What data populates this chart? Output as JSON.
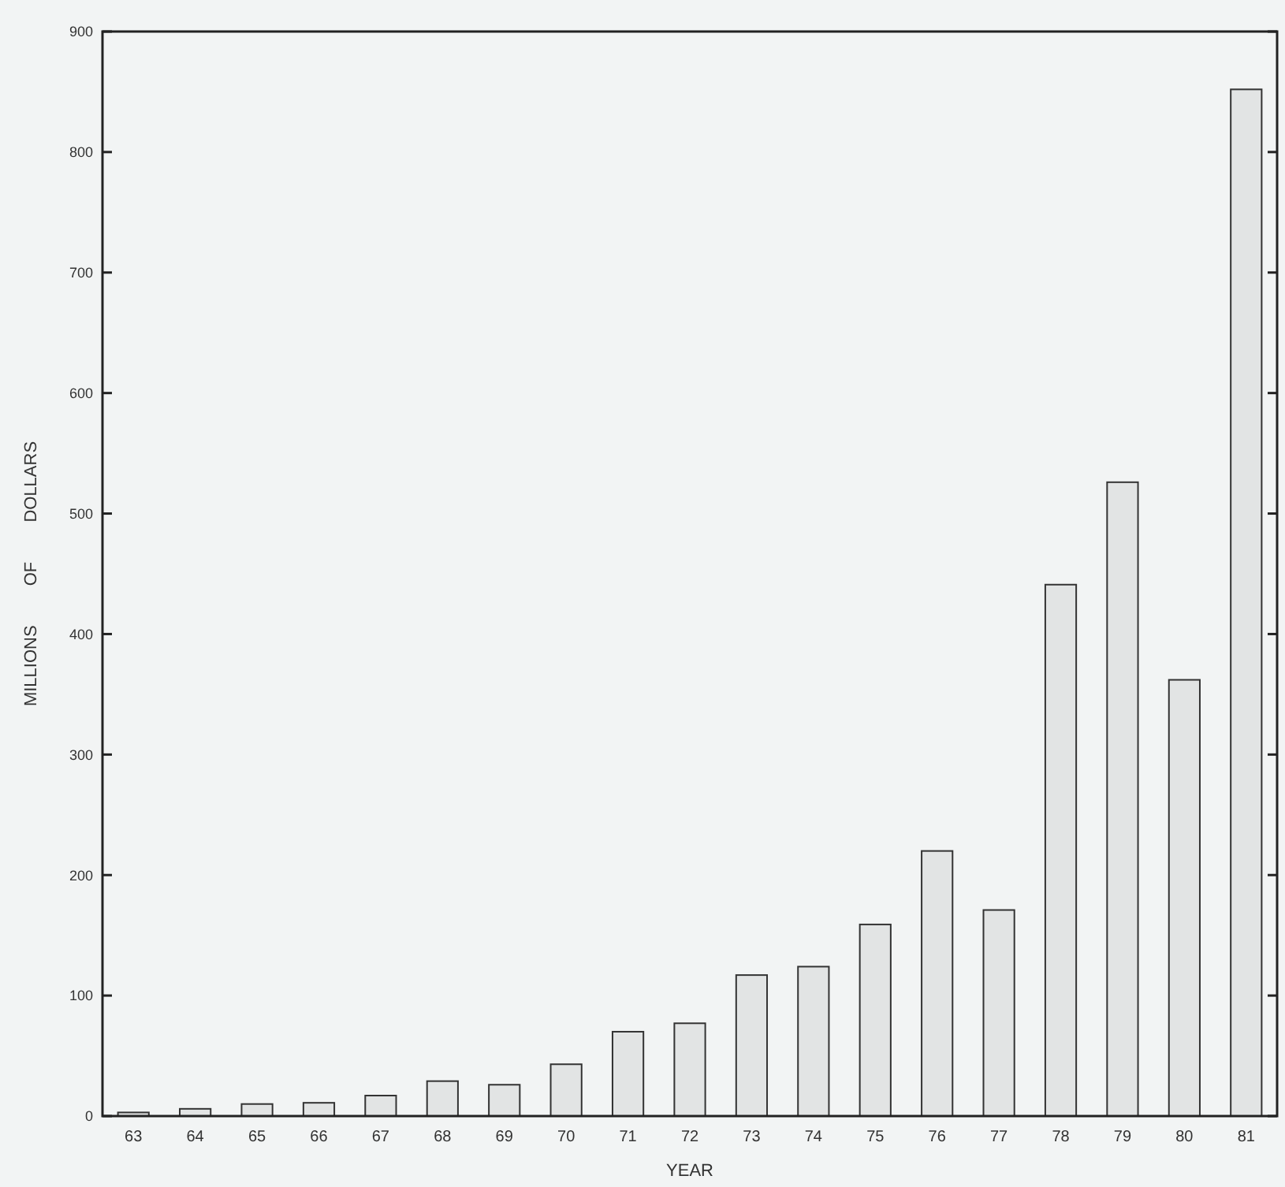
{
  "chart_data": {
    "type": "bar",
    "xlabel": "YEAR",
    "ylabel": "MILLIONS OF DOLLARS",
    "categories": [
      "63",
      "64",
      "65",
      "66",
      "67",
      "68",
      "69",
      "70",
      "71",
      "72",
      "73",
      "74",
      "75",
      "76",
      "77",
      "78",
      "79",
      "80",
      "81"
    ],
    "values": [
      3,
      6,
      10,
      11,
      17,
      29,
      26,
      43,
      70,
      77,
      117,
      124,
      159,
      220,
      171,
      441,
      526,
      362,
      852
    ],
    "color": "#e2e4e4",
    "ylim": [
      0,
      900
    ],
    "yticks": [
      0,
      100,
      200,
      300,
      400,
      500,
      600,
      700,
      800,
      900
    ],
    "grid": false
  }
}
